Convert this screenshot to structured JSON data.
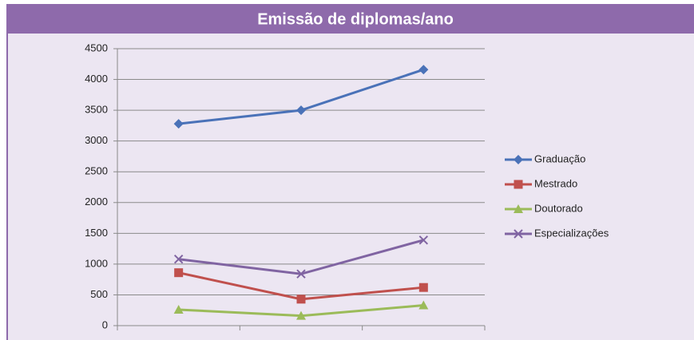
{
  "chart_data": {
    "type": "line",
    "title": "Emissão de diplomas/ano",
    "categories": [
      null,
      null,
      null
    ],
    "series": [
      {
        "name": "Graduação",
        "color": "#4a72b8",
        "marker": "diamond",
        "values": [
          3280,
          3500,
          4160
        ]
      },
      {
        "name": "Mestrado",
        "color": "#c0504d",
        "marker": "square",
        "values": [
          860,
          430,
          620
        ]
      },
      {
        "name": "Doutorado",
        "color": "#9bbb59",
        "marker": "triangle",
        "values": [
          260,
          160,
          330
        ]
      },
      {
        "name": "Especializações",
        "color": "#8064a2",
        "marker": "x",
        "values": [
          1080,
          840,
          1390
        ]
      }
    ],
    "ylim": [
      0,
      4500
    ],
    "yticks": [
      0,
      500,
      1000,
      1500,
      2000,
      2500,
      3000,
      3500,
      4000,
      4500
    ],
    "grid": true,
    "legend": "right"
  }
}
